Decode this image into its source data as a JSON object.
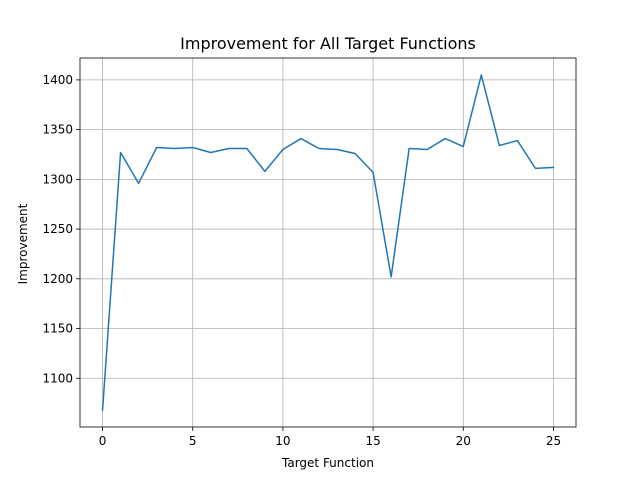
{
  "chart_data": {
    "type": "line",
    "title": "Improvement for All Target Functions",
    "xlabel": "Target Function",
    "ylabel": "Improvement",
    "xlim": [
      -1.25,
      26.25
    ],
    "ylim": [
      1051,
      1422
    ],
    "xticks": [
      0,
      5,
      10,
      15,
      20,
      25
    ],
    "yticks": [
      1100,
      1150,
      1200,
      1250,
      1300,
      1350,
      1400
    ],
    "grid": true,
    "series": [
      {
        "color": "#1f77b4",
        "x": [
          0,
          1,
          2,
          3,
          4,
          5,
          6,
          7,
          8,
          9,
          10,
          11,
          12,
          13,
          14,
          15,
          16,
          17,
          18,
          19,
          20,
          21,
          22,
          23,
          24,
          25
        ],
        "y": [
          1068,
          1327,
          1296,
          1332,
          1331,
          1332,
          1327,
          1331,
          1331,
          1308,
          1330,
          1341,
          1331,
          1330,
          1326,
          1307,
          1202,
          1331,
          1330,
          1341,
          1333,
          1405,
          1334,
          1339,
          1311,
          1312
        ]
      }
    ]
  }
}
